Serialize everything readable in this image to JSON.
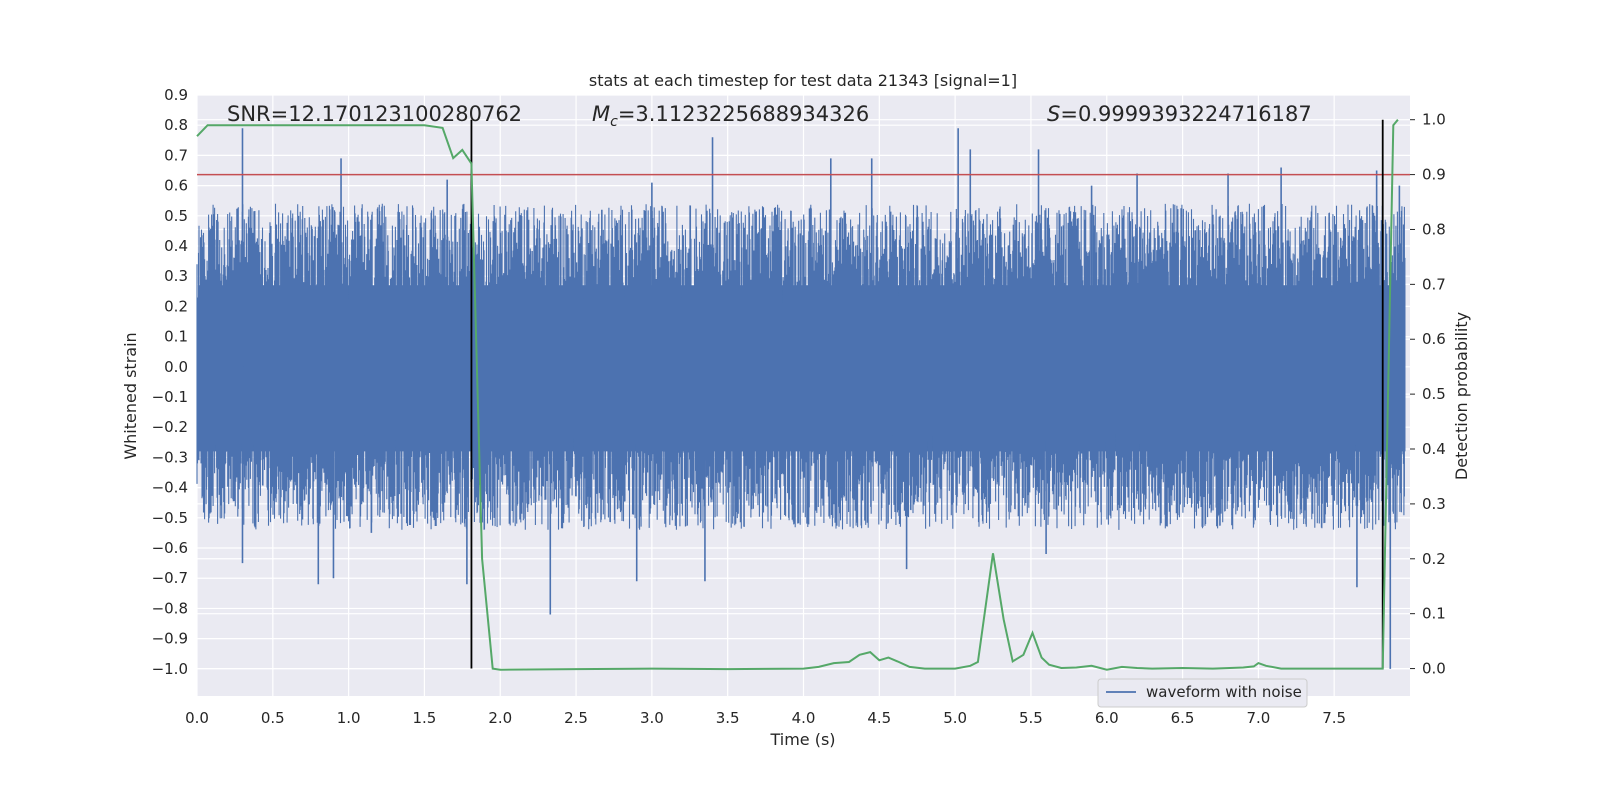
{
  "chart_data": {
    "type": "line",
    "title": "stats at each timestep for test data 21343 [signal=1]",
    "xlabel": "Time (s)",
    "ylabel": "Whitened strain",
    "ylabel_right": "Detection probability",
    "xlim": [
      0.0,
      8.0
    ],
    "ylim": [
      -1.09,
      0.9
    ],
    "ylim_right": [
      -0.05,
      1.045
    ],
    "x_ticks": [
      "0.0",
      "0.5",
      "1.0",
      "1.5",
      "2.0",
      "2.5",
      "3.0",
      "3.5",
      "4.0",
      "4.5",
      "5.0",
      "5.5",
      "6.0",
      "6.5",
      "7.0",
      "7.5"
    ],
    "y_ticks": [
      "−1.0",
      "−0.9",
      "−0.8",
      "−0.7",
      "−0.6",
      "−0.5",
      "−0.4",
      "−0.3",
      "−0.2",
      "−0.1",
      "0.0",
      "0.1",
      "0.2",
      "0.3",
      "0.4",
      "0.5",
      "0.6",
      "0.7",
      "0.8",
      "0.9"
    ],
    "y_ticks_right": [
      "0.0",
      "0.1",
      "0.2",
      "0.3",
      "0.4",
      "0.5",
      "0.6",
      "0.7",
      "0.8",
      "0.9",
      "1.0"
    ],
    "grid": true,
    "legend_position": "bottom-right",
    "annotations": {
      "snr": "SNR=12.170123100280762",
      "mc_symbol": "M",
      "mc_sub": "c",
      "mc_value": "=3.1123225688934326",
      "s_symbol": "S",
      "s_value": "=0.9999393224716187"
    },
    "threshold_right": 0.9,
    "vlines_x": [
      1.81,
      7.82
    ],
    "series": [
      {
        "name": "waveform with noise",
        "axis": "left",
        "color": "#4c72b0",
        "envelope_typical": 0.45,
        "peaks": [
          [
            0.3,
            0.79
          ],
          [
            0.3,
            -0.65
          ],
          [
            0.72,
            0.43
          ],
          [
            0.8,
            -0.72
          ],
          [
            0.95,
            0.69
          ],
          [
            0.9,
            -0.7
          ],
          [
            1.15,
            -0.55
          ],
          [
            1.65,
            0.62
          ],
          [
            1.78,
            -0.72
          ],
          [
            2.33,
            -0.82
          ],
          [
            2.67,
            0.52
          ],
          [
            2.9,
            -0.71
          ],
          [
            3.0,
            0.61
          ],
          [
            3.35,
            -0.71
          ],
          [
            3.4,
            0.76
          ],
          [
            4.18,
            0.69
          ],
          [
            4.45,
            0.69
          ],
          [
            4.68,
            -0.67
          ],
          [
            5.02,
            0.79
          ],
          [
            5.1,
            0.72
          ],
          [
            5.55,
            0.72
          ],
          [
            5.6,
            -0.62
          ],
          [
            5.9,
            0.6
          ],
          [
            6.2,
            0.64
          ],
          [
            6.8,
            0.64
          ],
          [
            7.15,
            0.66
          ],
          [
            7.65,
            -0.73
          ],
          [
            7.78,
            0.65
          ],
          [
            7.87,
            -1.0
          ],
          [
            7.93,
            0.6
          ]
        ]
      },
      {
        "name": "Detection probability",
        "axis": "right",
        "color": "#55a868",
        "x": [
          0.0,
          0.07,
          0.5,
          1.0,
          1.5,
          1.62,
          1.69,
          1.75,
          1.81,
          1.88,
          1.95,
          2.0,
          2.5,
          3.0,
          3.5,
          4.0,
          4.1,
          4.2,
          4.3,
          4.37,
          4.44,
          4.5,
          4.56,
          4.62,
          4.7,
          4.8,
          4.9,
          5.0,
          5.1,
          5.15,
          5.25,
          5.32,
          5.38,
          5.45,
          5.51,
          5.57,
          5.62,
          5.7,
          5.8,
          5.9,
          6.0,
          6.1,
          6.2,
          6.3,
          6.5,
          6.7,
          6.9,
          6.97,
          7.0,
          7.05,
          7.15,
          7.5,
          7.8,
          7.82,
          7.89,
          7.92
        ],
        "values": [
          0.97,
          0.99,
          0.99,
          0.99,
          0.99,
          0.985,
          0.93,
          0.945,
          0.92,
          0.2,
          0.0,
          -0.002,
          -0.001,
          0.0,
          -0.001,
          0.0,
          0.003,
          0.01,
          0.012,
          0.025,
          0.03,
          0.015,
          0.02,
          0.013,
          0.003,
          0.0,
          0.0,
          0.0,
          0.005,
          0.012,
          0.21,
          0.09,
          0.013,
          0.025,
          0.065,
          0.02,
          0.007,
          0.001,
          0.002,
          0.005,
          -0.002,
          0.003,
          0.001,
          0.0,
          0.001,
          0.0,
          0.002,
          0.004,
          0.01,
          0.005,
          0.0,
          0.0,
          0.0,
          0.0,
          0.99,
          1.0
        ]
      }
    ]
  },
  "colors": {
    "plot_background": "#eaeaf2",
    "grid": "#ffffff",
    "strain": "#4c72b0",
    "probability": "#55a868",
    "threshold": "#c44e52",
    "vline": "#000000"
  }
}
